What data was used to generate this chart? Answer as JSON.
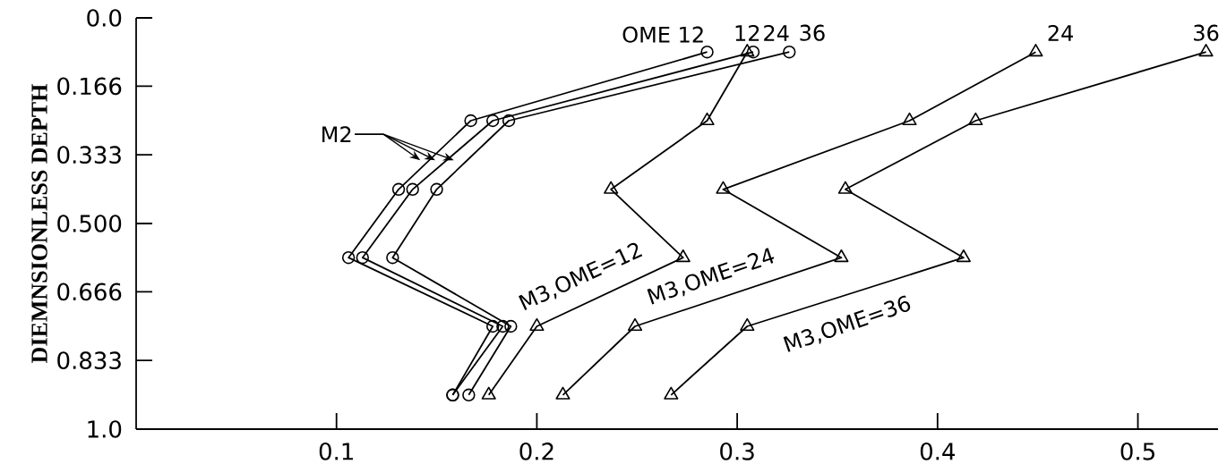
{
  "chart_data": {
    "type": "line",
    "ylabel": "DIEMNSIONLESS DEPTH",
    "xlim": [
      0,
      0.54
    ],
    "ylim": [
      1.0,
      0.0
    ],
    "xticks": [
      0.1,
      0.2,
      0.3,
      0.4,
      0.5
    ],
    "yticks": [
      {
        "value": 0.0,
        "label": "0.0"
      },
      {
        "value": 0.166,
        "label": "0.166"
      },
      {
        "value": 0.333,
        "label": "0.333"
      },
      {
        "value": 0.5,
        "label": "0.500"
      },
      {
        "value": 0.666,
        "label": "0.666"
      },
      {
        "value": 0.833,
        "label": "0.833"
      },
      {
        "value": 1.0,
        "label": "1.0"
      }
    ],
    "grid": false,
    "series": [
      {
        "color": "#000000",
        "marker": "circle",
        "x": [
          0.285,
          0.167,
          0.131,
          0.106,
          0.178,
          0.158
        ],
        "values": [
          0.083,
          0.25,
          0.417,
          0.583,
          0.75,
          0.917
        ]
      },
      {
        "color": "#000000",
        "marker": "circle",
        "x": [
          0.308,
          0.178,
          0.138,
          0.113,
          0.183,
          0.158
        ],
        "values": [
          0.083,
          0.25,
          0.417,
          0.583,
          0.75,
          0.917
        ]
      },
      {
        "color": "#000000",
        "marker": "circle",
        "x": [
          0.326,
          0.186,
          0.15,
          0.128,
          0.187,
          0.166
        ],
        "values": [
          0.083,
          0.25,
          0.417,
          0.583,
          0.75,
          0.917
        ]
      },
      {
        "color": "#000000",
        "marker": "triangle",
        "x": [
          0.305,
          0.285,
          0.237,
          0.273,
          0.2,
          0.176
        ],
        "values": [
          0.083,
          0.25,
          0.417,
          0.583,
          0.75,
          0.917
        ]
      },
      {
        "color": "#000000",
        "marker": "triangle",
        "x": [
          0.449,
          0.386,
          0.293,
          0.352,
          0.249,
          0.213
        ],
        "values": [
          0.083,
          0.25,
          0.417,
          0.583,
          0.75,
          0.917
        ]
      },
      {
        "color": "#000000",
        "marker": "triangle",
        "x": [
          0.534,
          0.419,
          0.354,
          0.413,
          0.305,
          0.267
        ],
        "values": [
          0.083,
          0.25,
          0.417,
          0.583,
          0.75,
          0.917
        ]
      }
    ],
    "annotations": [
      {
        "text": "OME 12",
        "x": 0.285,
        "y": 0.083
      },
      {
        "text": "12",
        "x": 0.305,
        "y": 0.083
      },
      {
        "text": "24",
        "x": 0.308,
        "y": 0.083
      },
      {
        "text": "36",
        "x": 0.326,
        "y": 0.083
      },
      {
        "text": "24",
        "x": 0.449,
        "y": 0.083
      },
      {
        "text": "36",
        "x": 0.534,
        "y": 0.083
      },
      "M3,OME=12",
      "M3,OME=24",
      "M3,OME=36",
      "M2"
    ]
  }
}
